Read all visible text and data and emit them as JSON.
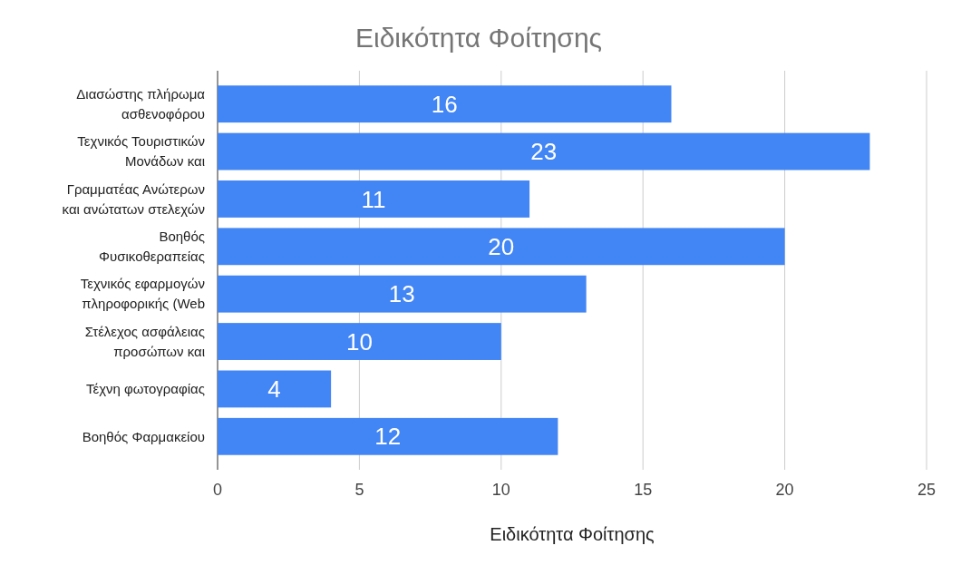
{
  "chart_data": {
    "type": "bar",
    "orientation": "horizontal",
    "title": "Ειδικότητα Φοίτησης",
    "xlabel": "Ειδικότητα Φοίτησης",
    "categories": [
      "Διασώστης πλήρωμα\nασθενοφόρου",
      "Τεχνικός Τουριστικών\nΜονάδων και",
      "Γραμματέας Ανώτερων\nκαι ανώτατων στελεχών",
      "Βοηθός\nΦυσικοθεραπείας",
      "Τεχνικός εφαρμογών\nπληροφορικής (Web",
      "Στέλεχος ασφάλειας\nπροσώπων και",
      "Τέχνη φωτογραφίας",
      "Βοηθός Φαρμακείου"
    ],
    "values": [
      16,
      23,
      11,
      20,
      13,
      10,
      4,
      12
    ],
    "color": "#4285f4",
    "xlim": [
      0,
      25
    ],
    "xticks": [
      0,
      5,
      10,
      15,
      20,
      25
    ],
    "grid": "x",
    "data_labels": true
  }
}
